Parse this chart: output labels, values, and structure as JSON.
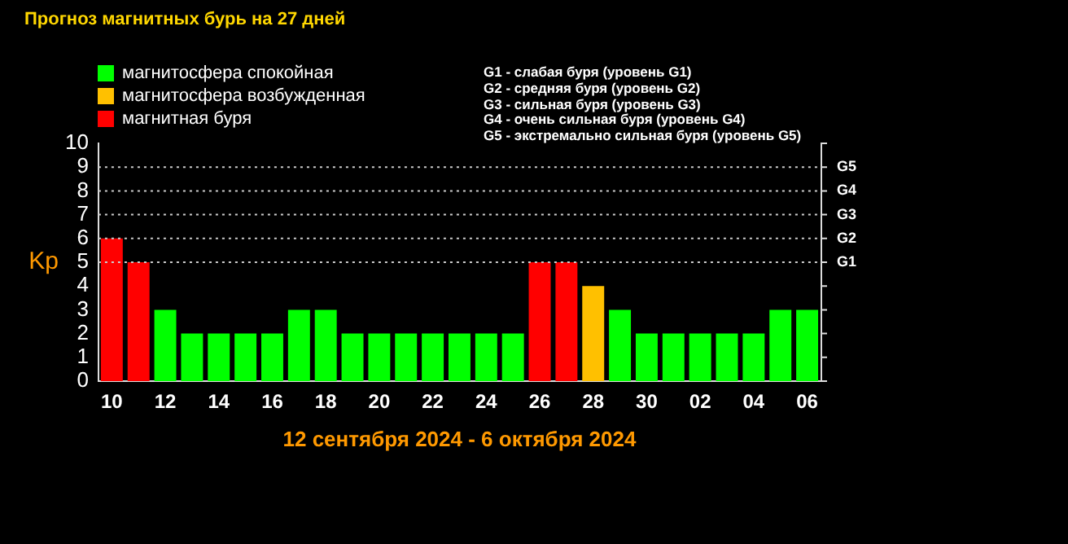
{
  "chart_data": {
    "type": "bar",
    "title": "Прогноз магнитных бурь на 27 дней",
    "xlabel": "12 сентября 2024 - 6 октября 2024",
    "ylabel": "Kp",
    "categories": [
      "10",
      null,
      "12",
      null,
      "14",
      null,
      "16",
      null,
      "18",
      null,
      "20",
      null,
      "22",
      null,
      "24",
      null,
      "26",
      null,
      "28",
      null,
      "30",
      null,
      "02",
      null,
      "04",
      null,
      "06"
    ],
    "stacked": true,
    "series": [
      {
        "name": "магнитосфера спокойная",
        "color": "#00ff00",
        "values": [
          null,
          null,
          3,
          2,
          2,
          2,
          2,
          3,
          3,
          2,
          2,
          2,
          2,
          2,
          2,
          2,
          null,
          null,
          null,
          3,
          2,
          2,
          2,
          2,
          2,
          3,
          3
        ]
      },
      {
        "name": "магнитосфера возбужденная",
        "color": "#ffc000",
        "values": [
          null,
          null,
          null,
          null,
          null,
          null,
          null,
          null,
          null,
          null,
          null,
          null,
          null,
          null,
          null,
          null,
          null,
          null,
          4,
          null,
          null,
          null,
          null,
          null,
          null,
          null,
          null
        ]
      },
      {
        "name": "магнитная буря",
        "color": "#ff0000",
        "values": [
          6,
          5,
          null,
          null,
          null,
          null,
          null,
          null,
          null,
          null,
          null,
          null,
          null,
          null,
          null,
          null,
          5,
          5,
          null,
          null,
          null,
          null,
          null,
          null,
          null,
          null,
          null
        ]
      }
    ],
    "ylim": [
      0,
      10
    ],
    "yticks": [
      0,
      1,
      2,
      3,
      4,
      5,
      6,
      7,
      8,
      9,
      10
    ],
    "ref_lines": [
      {
        "axis": "y",
        "value": 5,
        "label": "G1",
        "line_style": "dotted"
      },
      {
        "axis": "y",
        "value": 6,
        "label": "G2",
        "line_style": "dotted"
      },
      {
        "axis": "y",
        "value": 7,
        "label": "G3",
        "line_style": "dotted"
      },
      {
        "axis": "y",
        "value": 8,
        "label": "G4",
        "line_style": "dotted"
      },
      {
        "axis": "y",
        "value": 9,
        "label": "G5",
        "line_style": "dotted"
      }
    ],
    "grid": false,
    "legend": "top left",
    "annotations": [
      "G1 - слабая буря (уровень G1)",
      "G2 - средняя буря (уровень G2)",
      "G3 - сильная буря (уровень G3)",
      "G4 - очень сильная буря (уровень G4)",
      "G5 - экстремально сильная буря (уровень G5)"
    ]
  }
}
